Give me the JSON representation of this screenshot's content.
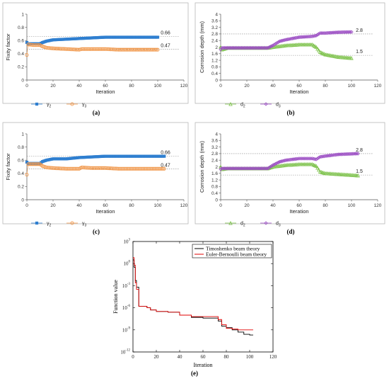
{
  "chart_data": [
    {
      "id": "a",
      "type": "scatter",
      "caption": "(a)",
      "xlabel": "Iteration",
      "ylabel": "Fixity factor",
      "xlim": [
        0,
        120
      ],
      "xticks": [
        0,
        20,
        40,
        60,
        80,
        100,
        120
      ],
      "ylim": [
        0,
        1
      ],
      "yticks": [
        "0",
        "0.2",
        "0.4",
        "0.6",
        "0.8",
        "1"
      ],
      "refs": [
        {
          "value": 0.66,
          "label": "0.66"
        },
        {
          "value": 0.47,
          "label": "0.47"
        }
      ],
      "series": [
        {
          "name": "γ2",
          "color": "#2f7fd0",
          "marker": "x",
          "points": [
            [
              0,
              0.57
            ],
            [
              1,
              0.55
            ],
            [
              5,
              0.55
            ],
            [
              10,
              0.55
            ],
            [
              12,
              0.57
            ],
            [
              15,
              0.59
            ],
            [
              20,
              0.61
            ],
            [
              30,
              0.62
            ],
            [
              40,
              0.63
            ],
            [
              50,
              0.64
            ],
            [
              60,
              0.65
            ],
            [
              70,
              0.65
            ],
            [
              80,
              0.65
            ],
            [
              90,
              0.65
            ],
            [
              100,
              0.65
            ]
          ]
        },
        {
          "name": "γ3",
          "color": "#f19a4f",
          "marker": "o",
          "points": [
            [
              0,
              0.38
            ],
            [
              1,
              0.54
            ],
            [
              5,
              0.53
            ],
            [
              10,
              0.53
            ],
            [
              12,
              0.51
            ],
            [
              15,
              0.49
            ],
            [
              20,
              0.48
            ],
            [
              30,
              0.47
            ],
            [
              40,
              0.46
            ],
            [
              42,
              0.47
            ],
            [
              50,
              0.47
            ],
            [
              60,
              0.47
            ],
            [
              70,
              0.46
            ],
            [
              80,
              0.46
            ],
            [
              90,
              0.46
            ],
            [
              100,
              0.46
            ]
          ]
        }
      ]
    },
    {
      "id": "b",
      "type": "scatter",
      "caption": "(b)",
      "xlabel": "Iteration",
      "ylabel": "Corrosion depth (mm)",
      "xlim": [
        0,
        120
      ],
      "xticks": [
        0,
        20,
        40,
        60,
        80,
        100,
        120
      ],
      "ylim": [
        0,
        4
      ],
      "yticks": [
        "0",
        "0.4",
        "0.8",
        "1.2",
        "1.6",
        "2",
        "2.4",
        "2.8",
        "3.2",
        "3.6",
        "4"
      ],
      "refs": [
        {
          "value": 2.8,
          "label": "2.8"
        },
        {
          "value": 1.5,
          "label": "1.5"
        }
      ],
      "series": [
        {
          "name": "d2",
          "color": "#7dc24b",
          "marker": "^",
          "points": [
            [
              0,
              2.0
            ],
            [
              1,
              1.85
            ],
            [
              5,
              1.95
            ],
            [
              20,
              1.95
            ],
            [
              36,
              1.95
            ],
            [
              40,
              2.0
            ],
            [
              45,
              2.05
            ],
            [
              50,
              2.1
            ],
            [
              60,
              2.15
            ],
            [
              70,
              2.15
            ],
            [
              73,
              2.0
            ],
            [
              76,
              1.7
            ],
            [
              80,
              1.55
            ],
            [
              90,
              1.4
            ],
            [
              100,
              1.33
            ]
          ]
        },
        {
          "name": "d3",
          "color": "#9c4fc4",
          "marker": "D",
          "points": [
            [
              0,
              1.85
            ],
            [
              1,
              1.95
            ],
            [
              5,
              1.95
            ],
            [
              20,
              1.95
            ],
            [
              36,
              1.95
            ],
            [
              40,
              2.1
            ],
            [
              45,
              2.35
            ],
            [
              50,
              2.45
            ],
            [
              60,
              2.6
            ],
            [
              70,
              2.65
            ],
            [
              73,
              2.7
            ],
            [
              76,
              2.85
            ],
            [
              80,
              2.85
            ],
            [
              90,
              2.9
            ],
            [
              100,
              2.92
            ]
          ]
        }
      ]
    },
    {
      "id": "c",
      "type": "scatter",
      "caption": "(c)",
      "xlabel": "Iteration",
      "ylabel": "Fixity factor",
      "xlim": [
        0,
        120
      ],
      "xticks": [
        0,
        20,
        40,
        60,
        80,
        100,
        120
      ],
      "ylim": [
        0,
        1
      ],
      "yticks": [
        "0",
        "0.2",
        "0.4",
        "0.6",
        "0.8",
        "1"
      ],
      "refs": [
        {
          "value": 0.66,
          "label": "0.66"
        },
        {
          "value": 0.47,
          "label": "0.47"
        }
      ],
      "series": [
        {
          "name": "γ2",
          "color": "#2f7fd0",
          "marker": "x",
          "points": [
            [
              0,
              0.57
            ],
            [
              1,
              0.55
            ],
            [
              5,
              0.55
            ],
            [
              10,
              0.55
            ],
            [
              12,
              0.58
            ],
            [
              15,
              0.6
            ],
            [
              20,
              0.62
            ],
            [
              30,
              0.62
            ],
            [
              40,
              0.64
            ],
            [
              50,
              0.65
            ],
            [
              60,
              0.66
            ],
            [
              70,
              0.66
            ],
            [
              80,
              0.66
            ],
            [
              90,
              0.66
            ],
            [
              105,
              0.66
            ]
          ]
        },
        {
          "name": "γ3",
          "color": "#f19a4f",
          "marker": "o",
          "points": [
            [
              0,
              0.38
            ],
            [
              1,
              0.54
            ],
            [
              5,
              0.54
            ],
            [
              10,
              0.54
            ],
            [
              12,
              0.51
            ],
            [
              15,
              0.49
            ],
            [
              20,
              0.48
            ],
            [
              30,
              0.47
            ],
            [
              40,
              0.47
            ],
            [
              42,
              0.49
            ],
            [
              50,
              0.48
            ],
            [
              60,
              0.48
            ],
            [
              70,
              0.47
            ],
            [
              80,
              0.47
            ],
            [
              90,
              0.47
            ],
            [
              105,
              0.47
            ]
          ]
        }
      ]
    },
    {
      "id": "d",
      "type": "scatter",
      "caption": "(d)",
      "xlabel": "Iteration",
      "ylabel": "Corrosion depth (mm)",
      "xlim": [
        0,
        120
      ],
      "xticks": [
        0,
        20,
        40,
        60,
        80,
        100,
        120
      ],
      "ylim": [
        0,
        4
      ],
      "yticks": [
        "0",
        "0.4",
        "0.8",
        "1.2",
        "1.6",
        "2",
        "2.4",
        "2.8",
        "3.2",
        "3.6",
        "4"
      ],
      "refs": [
        {
          "value": 2.8,
          "label": "2.8"
        },
        {
          "value": 1.5,
          "label": "1.5"
        }
      ],
      "series": [
        {
          "name": "d2",
          "color": "#7dc24b",
          "marker": "^",
          "points": [
            [
              0,
              2.0
            ],
            [
              1,
              1.85
            ],
            [
              5,
              1.9
            ],
            [
              20,
              1.9
            ],
            [
              36,
              1.9
            ],
            [
              40,
              2.0
            ],
            [
              45,
              2.05
            ],
            [
              50,
              2.1
            ],
            [
              60,
              2.15
            ],
            [
              70,
              2.15
            ],
            [
              73,
              2.05
            ],
            [
              76,
              1.7
            ],
            [
              80,
              1.6
            ],
            [
              90,
              1.55
            ],
            [
              105,
              1.47
            ]
          ]
        },
        {
          "name": "d3",
          "color": "#9c4fc4",
          "marker": "D",
          "points": [
            [
              0,
              1.85
            ],
            [
              1,
              1.9
            ],
            [
              5,
              1.9
            ],
            [
              20,
              1.9
            ],
            [
              36,
              1.9
            ],
            [
              40,
              2.1
            ],
            [
              45,
              2.3
            ],
            [
              50,
              2.4
            ],
            [
              60,
              2.5
            ],
            [
              70,
              2.5
            ],
            [
              73,
              2.45
            ],
            [
              76,
              2.6
            ],
            [
              80,
              2.65
            ],
            [
              90,
              2.75
            ],
            [
              105,
              2.8
            ]
          ]
        }
      ]
    },
    {
      "id": "e",
      "type": "line",
      "caption": "(e)",
      "xlabel": "Iteration",
      "ylabel": "Function value",
      "xlim": [
        0,
        120
      ],
      "xticks": [
        0,
        20,
        40,
        60,
        80,
        100,
        120
      ],
      "yscale": "log",
      "ylim_exp": [
        -12,
        3
      ],
      "yticks": [
        {
          "base": "10",
          "exp": "3"
        },
        {
          "base": "10",
          "exp": "0"
        },
        {
          "base": "10",
          "exp": "-3"
        },
        {
          "base": "10",
          "exp": "-6"
        },
        {
          "base": "10",
          "exp": "-9"
        },
        {
          "base": "10",
          "exp": "-12"
        }
      ],
      "legend_position": "top-right",
      "series": [
        {
          "name": "Timoshenko beam theory",
          "color": "#000000",
          "points": [
            [
              0,
              0.5
            ],
            [
              1,
              -0.5
            ],
            [
              2,
              -2.3
            ],
            [
              3,
              -3.2
            ],
            [
              5,
              -5.8
            ],
            [
              8,
              -5.8
            ],
            [
              12,
              -6.0
            ],
            [
              15,
              -6.3
            ],
            [
              20,
              -6.5
            ],
            [
              30,
              -6.6
            ],
            [
              40,
              -7.0
            ],
            [
              50,
              -7.3
            ],
            [
              60,
              -7.4
            ],
            [
              70,
              -7.4
            ],
            [
              73,
              -7.8
            ],
            [
              76,
              -8.5
            ],
            [
              80,
              -8.7
            ],
            [
              85,
              -9.0
            ],
            [
              90,
              -9.3
            ],
            [
              95,
              -9.6
            ],
            [
              100,
              -9.7
            ],
            [
              103,
              -9.7
            ]
          ]
        },
        {
          "name": "Euler-Bernoulli beam theory",
          "color": "#e00000",
          "points": [
            [
              0,
              0.8
            ],
            [
              1,
              -0.2
            ],
            [
              2,
              -2.6
            ],
            [
              3,
              -3.5
            ],
            [
              5,
              -5.8
            ],
            [
              8,
              -5.8
            ],
            [
              12,
              -6.0
            ],
            [
              15,
              -6.3
            ],
            [
              20,
              -6.5
            ],
            [
              30,
              -6.6
            ],
            [
              40,
              -7.0
            ],
            [
              50,
              -7.2
            ],
            [
              60,
              -7.2
            ],
            [
              70,
              -7.2
            ],
            [
              73,
              -7.6
            ],
            [
              76,
              -8.3
            ],
            [
              80,
              -8.8
            ],
            [
              85,
              -8.9
            ],
            [
              90,
              -9.0
            ],
            [
              95,
              -9.0
            ],
            [
              100,
              -9.0
            ],
            [
              103,
              -9.0
            ]
          ]
        }
      ]
    }
  ]
}
